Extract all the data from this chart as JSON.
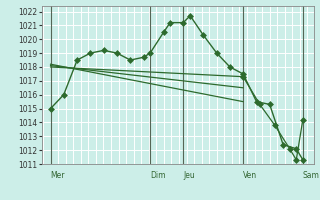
{
  "background_color": "#cceee8",
  "plot_bg_color": "#cceee8",
  "grid_color": "#ffffff",
  "line_color": "#2d6a2d",
  "vline_color": "#556655",
  "marker": "D",
  "marker_size": 3,
  "ylim": [
    1011,
    1022.4
  ],
  "yticks": [
    1011,
    1012,
    1013,
    1014,
    1015,
    1016,
    1017,
    1018,
    1019,
    1020,
    1021,
    1022
  ],
  "x_day_labels": [
    "Mer",
    "Dim",
    "Jeu",
    "Ven",
    "Sam"
  ],
  "x_day_positions": [
    0.0,
    3.33,
    4.44,
    6.44,
    8.44
  ],
  "xlim": [
    -0.3,
    8.8
  ],
  "series1_x": [
    0.0,
    0.44,
    0.89,
    1.33,
    1.78,
    2.22,
    2.67,
    3.11,
    3.33,
    3.78,
    4.0,
    4.44,
    4.67,
    5.11,
    5.56,
    6.0,
    6.44,
    6.89,
    7.33,
    7.78,
    8.22,
    8.44
  ],
  "series1_y": [
    1015.0,
    1016.0,
    1018.5,
    1019.0,
    1019.2,
    1019.0,
    1018.5,
    1018.7,
    1019.0,
    1020.5,
    1021.2,
    1021.2,
    1021.7,
    1020.3,
    1019.0,
    1018.0,
    1017.5,
    1015.5,
    1015.3,
    1012.4,
    1012.1,
    1011.3
  ],
  "series2_x": [
    0.0,
    6.44
  ],
  "series2_y": [
    1018.0,
    1017.3
  ],
  "series3_x": [
    0.0,
    6.44
  ],
  "series3_y": [
    1018.1,
    1016.5
  ],
  "series4_x": [
    0.0,
    6.44
  ],
  "series4_y": [
    1018.2,
    1015.5
  ],
  "series5_x": [
    6.44,
    7.0,
    7.5,
    8.0,
    8.22,
    8.44
  ],
  "series5_y": [
    1017.3,
    1015.3,
    1013.8,
    1012.1,
    1011.3,
    1014.2
  ],
  "vline_positions": [
    0.0,
    3.33,
    4.44,
    6.44,
    8.44
  ],
  "figsize": [
    3.2,
    2.0
  ],
  "dpi": 100
}
